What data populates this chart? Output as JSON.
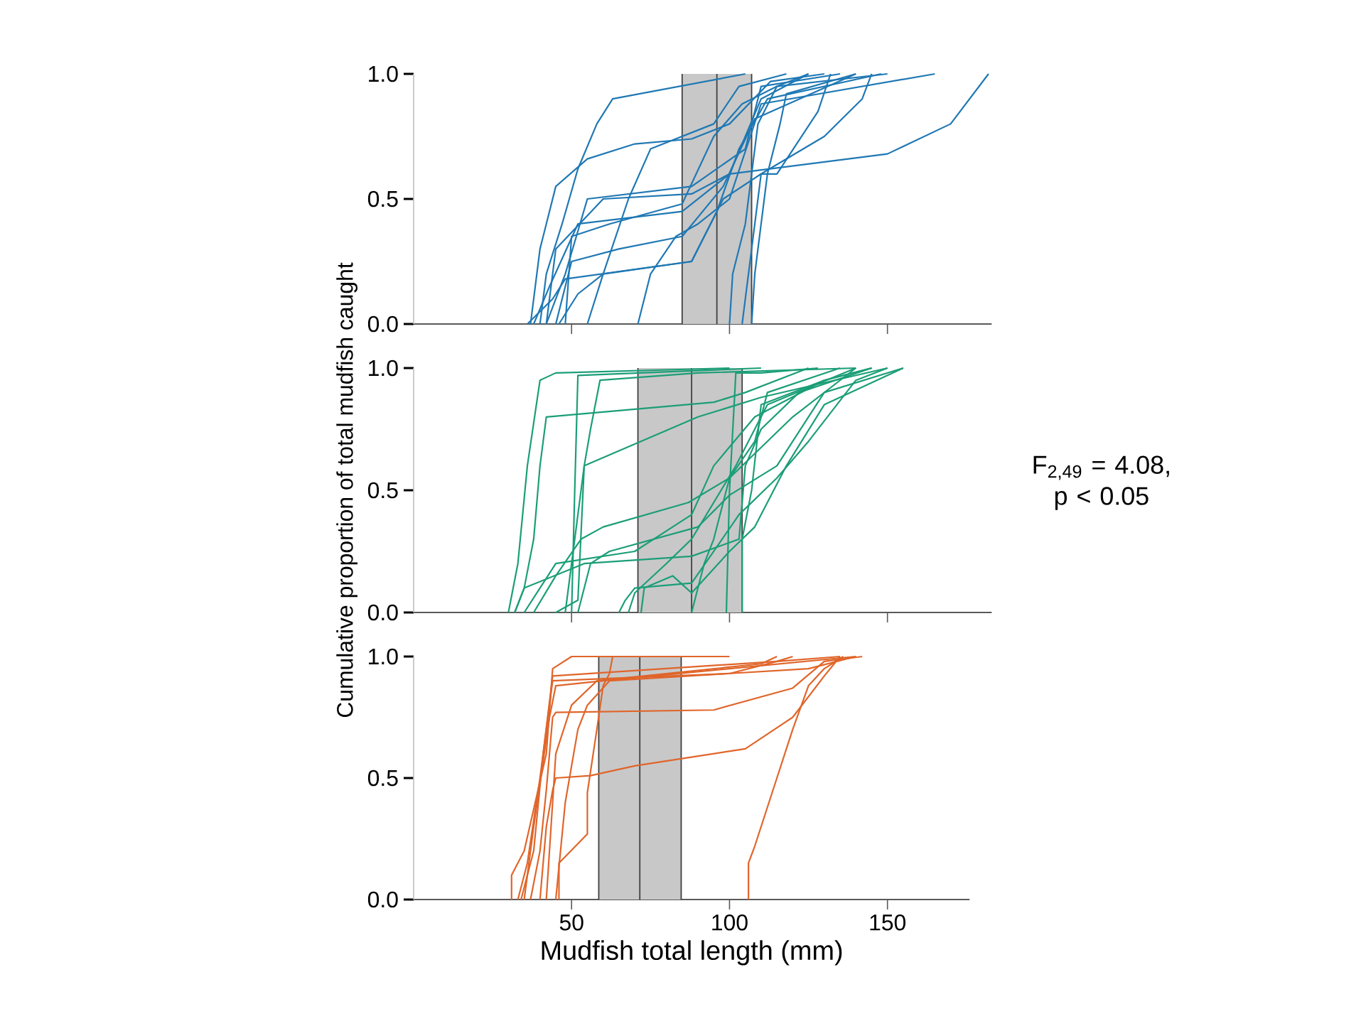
{
  "chart_data": [
    {
      "type": "line",
      "tick_labels": "y",
      "xlim": [
        0,
        183
      ],
      "ylim": [
        0,
        1
      ],
      "xticks": [
        50,
        100,
        150
      ],
      "yticks": [
        {
          "value": 0,
          "label": "0.0"
        },
        {
          "value": 0.5,
          "label": "0.5"
        },
        {
          "value": 1,
          "label": "1.0"
        }
      ],
      "bands": [
        {
          "axis": "x",
          "from": 85,
          "to": 107,
          "color": "#c8c8c8"
        }
      ],
      "ref_lines": [
        {
          "axis": "x",
          "value": 85,
          "color": "#404040"
        },
        {
          "axis": "x",
          "value": 96,
          "color": "#404040"
        },
        {
          "axis": "x",
          "value": 107,
          "color": "#404040"
        }
      ],
      "series": [
        {
          "color": "#1f78b4",
          "x": [
            40,
            42,
            47,
            52,
            58,
            63,
            105
          ],
          "values": [
            0,
            0.2,
            0.4,
            0.62,
            0.8,
            0.9,
            1.0
          ]
        },
        {
          "color": "#1f78b4",
          "x": [
            37,
            40,
            45,
            55,
            70,
            88,
            100,
            113,
            130
          ],
          "values": [
            0,
            0.3,
            0.55,
            0.66,
            0.72,
            0.74,
            0.8,
            0.97,
            1.0
          ]
        },
        {
          "color": "#1f78b4",
          "x": [
            38,
            43,
            52,
            85,
            100,
            110,
            125
          ],
          "values": [
            0,
            0.15,
            0.4,
            0.45,
            0.6,
            0.9,
            1.0
          ]
        },
        {
          "color": "#1f78b4",
          "x": [
            42,
            48,
            55,
            88,
            105,
            110,
            135
          ],
          "values": [
            0,
            0.2,
            0.5,
            0.55,
            0.7,
            0.95,
            1.0
          ]
        },
        {
          "color": "#1f78b4",
          "x": [
            45,
            50,
            65,
            85,
            98,
            108,
            140
          ],
          "values": [
            0,
            0.25,
            0.3,
            0.35,
            0.55,
            0.82,
            1.0
          ]
        },
        {
          "color": "#1f78b4",
          "x": [
            46,
            52,
            60,
            88,
            96,
            103,
            112,
            148
          ],
          "values": [
            0,
            0.12,
            0.2,
            0.25,
            0.45,
            0.7,
            0.9,
            1.0
          ]
        },
        {
          "color": "#1f78b4",
          "x": [
            55,
            60,
            68,
            75,
            95,
            103,
            118
          ],
          "values": [
            0,
            0.2,
            0.5,
            0.7,
            0.8,
            0.95,
            1.0
          ]
        },
        {
          "color": "#1f78b4",
          "x": [
            71,
            75,
            83,
            90,
            100,
            110,
            165
          ],
          "values": [
            0,
            0.2,
            0.35,
            0.4,
            0.5,
            0.88,
            1.0
          ]
        },
        {
          "color": "#1f78b4",
          "x": [
            100,
            101,
            105,
            109,
            115,
            150
          ],
          "values": [
            0,
            0.2,
            0.4,
            0.8,
            0.95,
            1.0
          ]
        },
        {
          "color": "#1f78b4",
          "x": [
            104,
            107,
            110,
            115,
            128,
            132
          ],
          "values": [
            0,
            0.3,
            0.6,
            0.6,
            0.85,
            1.0
          ]
        },
        {
          "color": "#1f78b4",
          "x": [
            42,
            45,
            60,
            88,
            100,
            150,
            170,
            182
          ],
          "values": [
            0,
            0.3,
            0.5,
            0.52,
            0.6,
            0.68,
            0.8,
            1.0
          ]
        },
        {
          "color": "#1f78b4",
          "x": [
            36,
            44,
            48,
            88,
            98,
            110,
            130,
            142,
            145
          ],
          "values": [
            0,
            0.1,
            0.18,
            0.25,
            0.5,
            0.6,
            0.75,
            0.9,
            1.0
          ]
        },
        {
          "color": "#1f78b4",
          "x": [
            48,
            50,
            62,
            85,
            95,
            104,
            115,
            125
          ],
          "values": [
            0,
            0.35,
            0.4,
            0.48,
            0.75,
            0.88,
            0.95,
            1.0
          ]
        },
        {
          "color": "#1f78b4",
          "x": [
            107,
            108,
            112,
            116,
            118,
            140
          ],
          "values": [
            0,
            0.2,
            0.6,
            0.8,
            0.92,
            1.0
          ]
        }
      ]
    },
    {
      "type": "line",
      "tick_labels": "y",
      "xlim": [
        0,
        183
      ],
      "ylim": [
        0,
        1
      ],
      "ylabel": "Cumulative proportion of total mudfish caught",
      "annotations": [
        "F$_{2,49}$ = 4.08, p < 0.05"
      ],
      "xticks": [
        50,
        100,
        150
      ],
      "yticks": [
        {
          "value": 0,
          "label": "0.0"
        },
        {
          "value": 0.5,
          "label": "0.5"
        },
        {
          "value": 1,
          "label": "1.0"
        }
      ],
      "bands": [
        {
          "axis": "x",
          "from": 71,
          "to": 104,
          "color": "#c8c8c8"
        }
      ],
      "ref_lines": [
        {
          "axis": "x",
          "value": 71,
          "color": "#404040"
        },
        {
          "axis": "x",
          "value": 88,
          "color": "#404040"
        },
        {
          "axis": "x",
          "value": 104,
          "color": "#404040"
        }
      ],
      "series": [
        {
          "color": "#1b9e77",
          "x": [
            30,
            33,
            36,
            40,
            45,
            100
          ],
          "values": [
            0,
            0.2,
            0.6,
            0.95,
            0.98,
            1.0
          ]
        },
        {
          "color": "#1b9e77",
          "x": [
            32,
            35,
            38,
            40,
            42,
            95,
            105,
            125
          ],
          "values": [
            0,
            0.1,
            0.3,
            0.6,
            0.8,
            0.86,
            0.9,
            1.0
          ]
        },
        {
          "color": "#1b9e77",
          "x": [
            50,
            51,
            52,
            110
          ],
          "values": [
            0,
            0.5,
            0.97,
            1.0
          ]
        },
        {
          "color": "#1b9e77",
          "x": [
            48,
            52,
            54,
            56,
            59,
            90,
            140
          ],
          "values": [
            0,
            0.4,
            0.6,
            0.75,
            0.95,
            0.98,
            1.0
          ]
        },
        {
          "color": "#1b9e77",
          "x": [
            35,
            40,
            45,
            70,
            88,
            95,
            108,
            130,
            145
          ],
          "values": [
            0,
            0.1,
            0.2,
            0.25,
            0.4,
            0.6,
            0.8,
            0.95,
            1.0
          ]
        },
        {
          "color": "#1b9e77",
          "x": [
            38,
            45,
            53,
            60,
            87,
            100,
            120,
            140
          ],
          "values": [
            0,
            0.15,
            0.3,
            0.35,
            0.45,
            0.55,
            0.8,
            1.0
          ]
        },
        {
          "color": "#1b9e77",
          "x": [
            45,
            52,
            54,
            90,
            110,
            150
          ],
          "values": [
            0,
            0.05,
            0.6,
            0.8,
            0.88,
            1.0
          ]
        },
        {
          "color": "#1b9e77",
          "x": [
            52,
            56,
            62,
            90,
            100,
            115,
            130,
            155
          ],
          "values": [
            0,
            0.2,
            0.25,
            0.35,
            0.48,
            0.6,
            0.9,
            1.0
          ]
        },
        {
          "color": "#1b9e77",
          "x": [
            65,
            67,
            70,
            88,
            95,
            103,
            115,
            125,
            140,
            150
          ],
          "values": [
            0,
            0.05,
            0.1,
            0.12,
            0.25,
            0.4,
            0.55,
            0.7,
            0.95,
            1.0
          ]
        },
        {
          "color": "#1b9e77",
          "x": [
            68,
            70,
            80,
            88,
            95,
            102,
            112,
            140
          ],
          "values": [
            0,
            0.08,
            0.2,
            0.3,
            0.45,
            0.6,
            0.85,
            1.0
          ]
        },
        {
          "color": "#1b9e77",
          "x": [
            72,
            73,
            82,
            88,
            100,
            108,
            118,
            130,
            155
          ],
          "values": [
            0,
            0.1,
            0.15,
            0.08,
            0.25,
            0.35,
            0.6,
            0.85,
            1.0
          ]
        },
        {
          "color": "#1b9e77",
          "x": [
            99,
            100,
            102,
            110,
            128
          ],
          "values": [
            0,
            0.5,
            0.98,
            0.98,
            1.0
          ]
        },
        {
          "color": "#1b9e77",
          "x": [
            104,
            104,
            107,
            110,
            130,
            145
          ],
          "values": [
            0,
            0.3,
            0.5,
            0.85,
            0.95,
            1.0
          ]
        },
        {
          "color": "#1b9e77",
          "x": [
            88,
            92,
            95,
            100,
            108,
            112,
            135
          ],
          "values": [
            0,
            0.2,
            0.3,
            0.55,
            0.7,
            0.9,
            1.0
          ]
        },
        {
          "color": "#1b9e77",
          "x": [
            32,
            35,
            54,
            88,
            103,
            105,
            110,
            122,
            145
          ],
          "values": [
            0,
            0.1,
            0.2,
            0.23,
            0.3,
            0.6,
            0.75,
            0.9,
            1.0
          ]
        }
      ]
    },
    {
      "type": "line",
      "xlim": [
        0,
        176
      ],
      "ylim": [
        0,
        1
      ],
      "xlabel": "Mudfish total length (mm)",
      "xticks": [
        50,
        100,
        150
      ],
      "yticks": [
        {
          "value": 0,
          "label": "0.0"
        },
        {
          "value": 0.5,
          "label": "0.5"
        },
        {
          "value": 1,
          "label": "1.0"
        }
      ],
      "bands": [
        {
          "axis": "x",
          "from": 58.6,
          "to": 84.7,
          "color": "#c8c8c8"
        }
      ],
      "ref_lines": [
        {
          "axis": "x",
          "value": 58.6,
          "color": "#404040"
        },
        {
          "axis": "x",
          "value": 71.6,
          "color": "#404040"
        },
        {
          "axis": "x",
          "value": 84.7,
          "color": "#404040"
        }
      ],
      "series": [
        {
          "color": "#e0652a",
          "x": [
            31,
            31,
            35,
            42,
            44,
            50,
            100
          ],
          "values": [
            0,
            0.1,
            0.2,
            0.6,
            0.95,
            1.0,
            1.0
          ]
        },
        {
          "color": "#e0652a",
          "x": [
            33,
            36,
            40,
            44,
            100,
            115,
            120
          ],
          "values": [
            0,
            0.15,
            0.5,
            0.9,
            0.93,
            0.98,
            1.0
          ]
        },
        {
          "color": "#e0652a",
          "x": [
            35,
            38,
            43,
            45,
            60,
            140
          ],
          "values": [
            0,
            0.3,
            0.75,
            0.88,
            0.9,
            1.0
          ]
        },
        {
          "color": "#e0652a",
          "x": [
            34,
            38,
            41,
            44,
            115,
            135
          ],
          "values": [
            0,
            0.2,
            0.6,
            0.92,
            0.98,
            1.0
          ]
        },
        {
          "color": "#e0652a",
          "x": [
            37,
            40,
            42,
            44,
            45,
            95,
            120,
            130,
            142
          ],
          "values": [
            0,
            0.2,
            0.45,
            0.75,
            0.77,
            0.78,
            0.87,
            0.98,
            1.0
          ]
        },
        {
          "color": "#e0652a",
          "x": [
            42,
            45,
            50,
            58,
            110,
            115
          ],
          "values": [
            0,
            0.6,
            0.8,
            0.9,
            0.97,
            1.0
          ]
        },
        {
          "color": "#e0652a",
          "x": [
            46,
            46,
            55,
            55,
            58,
            60,
            62,
            63
          ],
          "values": [
            0,
            0.15,
            0.27,
            0.44,
            0.7,
            0.88,
            0.93,
            1.0
          ]
        },
        {
          "color": "#e0652a",
          "x": [
            40,
            42,
            44,
            45,
            56,
            70,
            105,
            120,
            130,
            135
          ],
          "values": [
            0,
            0.3,
            0.45,
            0.5,
            0.51,
            0.55,
            0.62,
            0.75,
            0.92,
            1.0
          ]
        },
        {
          "color": "#e0652a",
          "x": [
            106,
            106,
            108,
            115,
            120,
            125,
            130,
            136
          ],
          "values": [
            0,
            0.15,
            0.22,
            0.5,
            0.7,
            0.88,
            0.95,
            1.0
          ]
        },
        {
          "color": "#e0652a",
          "x": [
            45,
            48,
            52,
            55,
            62,
            125,
            140
          ],
          "values": [
            0,
            0.4,
            0.7,
            0.8,
            0.9,
            0.95,
            1.0
          ]
        }
      ]
    }
  ]
}
